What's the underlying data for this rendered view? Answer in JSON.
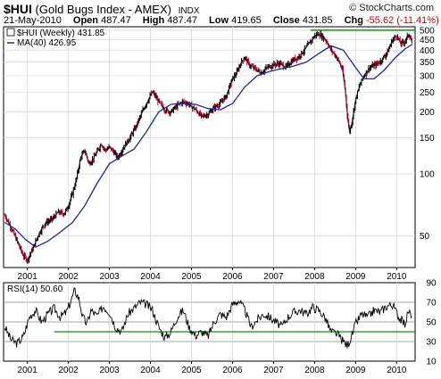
{
  "header": {
    "symbol": "$HUI",
    "name": "(Gold Bugs Index - AMEX)",
    "exchange": "INDX",
    "date": "21-May-2010",
    "open_label": "Open",
    "open": "487.47",
    "high_label": "High",
    "high": "487.47",
    "low_label": "Low",
    "low": "419.65",
    "close_label": "Close",
    "close": "431.85",
    "chg_label": "Chg",
    "chg": "-55.62 (-11.41%)",
    "chg_arrow": "▼",
    "brand": "© StockCharts.com"
  },
  "colors": {
    "up": "#000000",
    "down": "#cc0033",
    "ma": "#1f2a8c",
    "support": "#009900",
    "grid": "#d9d9d9",
    "rsi": "#000000"
  },
  "chart_data": [
    {
      "type": "line",
      "title": "$HUI (Gold Bugs Index - AMEX)",
      "scale": "log",
      "ylim": [
        35,
        520
      ],
      "yticks": [
        50,
        100,
        150,
        200,
        250,
        300,
        350,
        400,
        450,
        500
      ],
      "xticks": [
        "2001",
        "2002",
        "2003",
        "2004",
        "2005",
        "2006",
        "2007",
        "2008",
        "2009",
        "2010"
      ],
      "xticks_pos": [
        2001.0,
        2002.0,
        2003.0,
        2004.0,
        2005.0,
        2006.0,
        2007.0,
        2008.0,
        2009.0,
        2010.0
      ],
      "xlim": [
        2000.42,
        2010.45
      ],
      "grid": true,
      "legend": "top-left",
      "series": [
        {
          "name": "$HUI (Weekly) 431.85",
          "x": [
            2000.45,
            2000.6,
            2000.75,
            2000.9,
            2001.0,
            2001.15,
            2001.3,
            2001.45,
            2001.6,
            2001.75,
            2001.9,
            2002.0,
            2002.1,
            2002.2,
            2002.3,
            2002.4,
            2002.5,
            2002.6,
            2002.7,
            2002.8,
            2002.9,
            2003.0,
            2003.1,
            2003.2,
            2003.35,
            2003.5,
            2003.65,
            2003.8,
            2003.95,
            2004.05,
            2004.2,
            2004.35,
            2004.5,
            2004.65,
            2004.8,
            2004.95,
            2005.1,
            2005.25,
            2005.4,
            2005.55,
            2005.7,
            2005.85,
            2006.0,
            2006.1,
            2006.2,
            2006.3,
            2006.4,
            2006.5,
            2006.6,
            2006.7,
            2006.85,
            2007.0,
            2007.15,
            2007.3,
            2007.45,
            2007.6,
            2007.75,
            2007.9,
            2008.0,
            2008.1,
            2008.2,
            2008.3,
            2008.4,
            2008.5,
            2008.6,
            2008.68,
            2008.75,
            2008.8,
            2008.85,
            2008.9,
            2008.95,
            2009.0,
            2009.1,
            2009.2,
            2009.35,
            2009.5,
            2009.65,
            2009.8,
            2009.9,
            2010.0,
            2010.1,
            2010.2,
            2010.3,
            2010.38
          ],
          "values": [
            63,
            55,
            47,
            40,
            38,
            44,
            52,
            58,
            60,
            65,
            64,
            70,
            80,
            95,
            120,
            130,
            112,
            118,
            128,
            140,
            130,
            135,
            128,
            120,
            135,
            150,
            170,
            200,
            230,
            250,
            225,
            205,
            200,
            215,
            225,
            218,
            205,
            190,
            195,
            210,
            220,
            240,
            290,
            310,
            345,
            370,
            340,
            330,
            320,
            310,
            330,
            340,
            345,
            330,
            355,
            370,
            400,
            440,
            470,
            480,
            465,
            440,
            400,
            380,
            350,
            320,
            250,
            190,
            160,
            175,
            200,
            230,
            270,
            300,
            330,
            340,
            360,
            400,
            450,
            470,
            430,
            440,
            480,
            432
          ]
        },
        {
          "name": "MA(40) 426.95",
          "x": [
            2000.45,
            2000.7,
            2000.95,
            2001.2,
            2001.5,
            2001.8,
            2002.1,
            2002.4,
            2002.7,
            2003.0,
            2003.3,
            2003.6,
            2003.9,
            2004.2,
            2004.5,
            2004.8,
            2005.1,
            2005.4,
            2005.7,
            2006.0,
            2006.3,
            2006.6,
            2006.9,
            2007.2,
            2007.5,
            2007.8,
            2008.1,
            2008.4,
            2008.7,
            2008.95,
            2009.2,
            2009.45,
            2009.7,
            2009.95,
            2010.2,
            2010.38
          ],
          "values": [
            58,
            54,
            48,
            44,
            47,
            52,
            58,
            70,
            90,
            112,
            122,
            132,
            160,
            200,
            218,
            220,
            218,
            208,
            205,
            220,
            265,
            300,
            315,
            325,
            335,
            350,
            385,
            420,
            400,
            340,
            290,
            290,
            320,
            365,
            405,
            427
          ]
        }
      ],
      "annotations": [
        {
          "type": "hline",
          "y": 500,
          "x_from": 2007.9,
          "x_to": 2010.45
        }
      ]
    },
    {
      "type": "line",
      "title": "RSI(14) 50.60",
      "ylim": [
        10,
        90
      ],
      "yticks": [
        10,
        30,
        50,
        70,
        90
      ],
      "gridlines": [
        30,
        50,
        70
      ],
      "xticks": [
        "2001",
        "2002",
        "2003",
        "2004",
        "2005",
        "2006",
        "2007",
        "2008",
        "2009",
        "2010"
      ],
      "xticks_pos": [
        2001.0,
        2002.0,
        2003.0,
        2004.0,
        2005.0,
        2006.0,
        2007.0,
        2008.0,
        2009.0,
        2010.0
      ],
      "xlim": [
        2000.42,
        2010.45
      ],
      "series": [
        {
          "name": "RSI(14) 50.60",
          "x": [
            2000.45,
            2000.6,
            2000.75,
            2000.9,
            2001.05,
            2001.2,
            2001.35,
            2001.5,
            2001.65,
            2001.8,
            2001.95,
            2002.05,
            2002.15,
            2002.25,
            2002.35,
            2002.45,
            2002.55,
            2002.7,
            2002.85,
            2003.0,
            2003.15,
            2003.3,
            2003.45,
            2003.6,
            2003.75,
            2003.9,
            2004.05,
            2004.2,
            2004.35,
            2004.5,
            2004.65,
            2004.8,
            2004.95,
            2005.1,
            2005.25,
            2005.4,
            2005.55,
            2005.7,
            2005.85,
            2006.0,
            2006.15,
            2006.3,
            2006.45,
            2006.6,
            2006.75,
            2006.9,
            2007.05,
            2007.2,
            2007.35,
            2007.5,
            2007.65,
            2007.8,
            2007.95,
            2008.1,
            2008.25,
            2008.4,
            2008.55,
            2008.7,
            2008.8,
            2008.9,
            2009.0,
            2009.15,
            2009.3,
            2009.45,
            2009.6,
            2009.75,
            2009.9,
            2010.05,
            2010.2,
            2010.3,
            2010.38
          ],
          "values": [
            45,
            32,
            28,
            35,
            55,
            62,
            50,
            58,
            64,
            55,
            60,
            70,
            82,
            75,
            55,
            48,
            62,
            56,
            66,
            60,
            45,
            40,
            58,
            64,
            70,
            68,
            62,
            45,
            34,
            40,
            55,
            62,
            44,
            36,
            40,
            35,
            50,
            58,
            55,
            68,
            72,
            62,
            45,
            52,
            58,
            55,
            50,
            45,
            55,
            60,
            62,
            58,
            65,
            62,
            55,
            40,
            38,
            30,
            26,
            35,
            48,
            58,
            55,
            62,
            60,
            66,
            68,
            55,
            48,
            62,
            50.6
          ]
        }
      ],
      "annotations": [
        {
          "type": "hline",
          "y": 40,
          "x_from": 2001.65,
          "x_to": 2010.45
        }
      ]
    }
  ]
}
